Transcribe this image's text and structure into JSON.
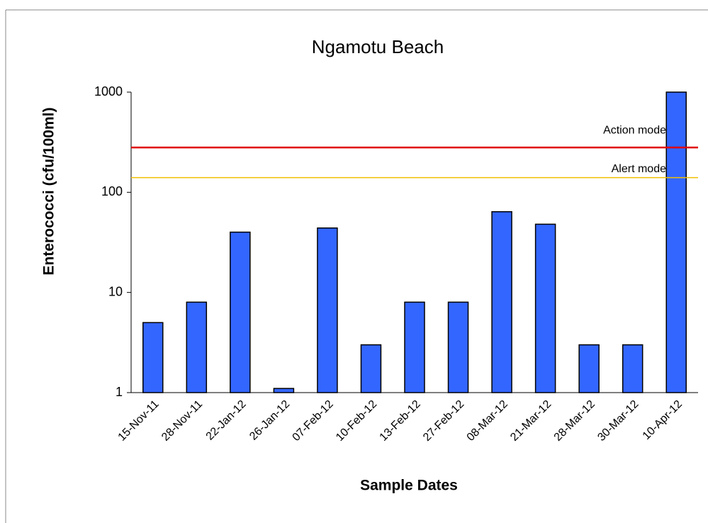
{
  "chart_data": {
    "type": "bar",
    "title": "Ngamotu Beach",
    "x_label": "Sample Dates",
    "y_label": "Enterococci (cfu/100ml)",
    "categories": [
      "15-Nov-11",
      "28-Nov-11",
      "22-Jan-12",
      "26-Jan-12",
      "07-Feb-12",
      "10-Feb-12",
      "13-Feb-12",
      "27-Feb-12",
      "08-Mar-12",
      "21-Mar-12",
      "28-Mar-12",
      "30-Mar-12",
      "10-Apr-12"
    ],
    "values": [
      5,
      8,
      40,
      1.1,
      44,
      3,
      8,
      8,
      64,
      48,
      3,
      3,
      1000
    ],
    "color": "#3366ff",
    "log_scale": true,
    "ylim": [
      1,
      1000
    ],
    "yticks": [
      1,
      10,
      100,
      1000
    ],
    "reference_lines": [
      {
        "label": "Action mode",
        "value": 280,
        "color": "#e00000"
      },
      {
        "label": "Alert mode",
        "value": 140,
        "color": "#f0c000"
      }
    ]
  }
}
